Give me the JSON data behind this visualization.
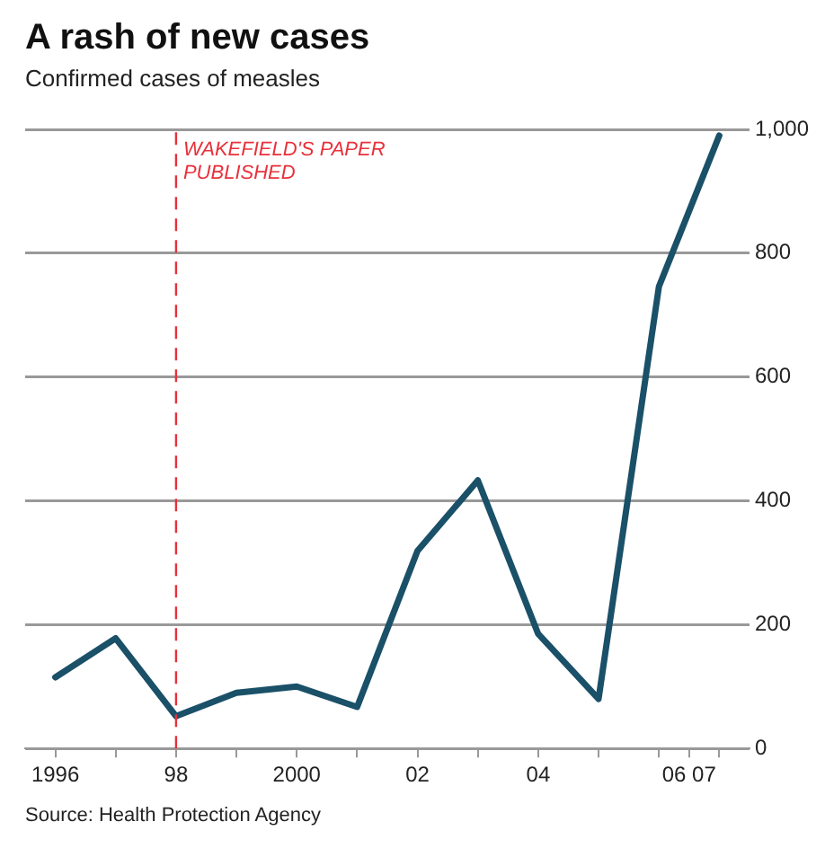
{
  "chart_data": {
    "type": "line",
    "title": "A rash of new cases",
    "subtitle": "Confirmed cases of measles",
    "x": [
      1996,
      1997,
      1998,
      1999,
      2000,
      2001,
      2002,
      2003,
      2004,
      2005,
      2006,
      2007
    ],
    "series": [
      {
        "color": "#1a5068",
        "values": [
          115,
          178,
          52,
          90,
          100,
          67,
          319,
          433,
          185,
          80,
          746,
          990
        ]
      }
    ],
    "xlim": [
      1995.5,
      2007.5
    ],
    "xticks": [
      1996,
      {
        "value": 1997,
        "label": null
      },
      {
        "value": 1998,
        "label": "98"
      },
      {
        "value": 1999,
        "label": null
      },
      2000,
      {
        "value": 2001,
        "label": null
      },
      {
        "value": 2002,
        "label": "02"
      },
      {
        "value": 2003,
        "label": null
      },
      {
        "value": 2004,
        "label": "04"
      },
      {
        "value": 2005,
        "label": null
      },
      {
        "value": 2006,
        "label": null
      },
      {
        "value": 2006.5,
        "label": "06 07"
      },
      {
        "value": 2007,
        "label": null
      }
    ],
    "ylim": [
      0,
      1000
    ],
    "yticks": [
      0,
      200,
      400,
      600,
      800,
      {
        "value": 1000,
        "label": "1,000"
      }
    ],
    "grid": "y",
    "legend": false,
    "marker": "none",
    "line_style": "solid",
    "ref_lines": [
      {
        "axis": "x",
        "value": 1998,
        "label": "WAKEFIELD'S PAPER\nPUBLISHED",
        "color": "#e8303a",
        "line_style": "dashed"
      }
    ],
    "annotations": [
      "Source: Health Protection Agency"
    ]
  }
}
